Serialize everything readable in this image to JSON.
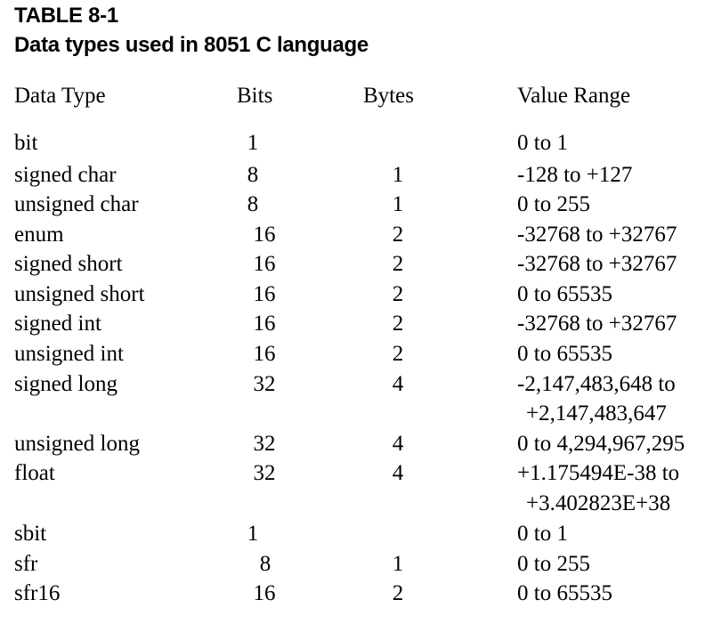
{
  "caption": {
    "number": "TABLE 8-1",
    "title": "Data types used in 8051 C language"
  },
  "table": {
    "headers": {
      "data_type": "Data Type",
      "bits": "Bits",
      "bytes": "Bytes",
      "value_range": "Value Range"
    },
    "rows": [
      {
        "type": "bit",
        "bits": "1",
        "bytes": "",
        "range": "0 to 1",
        "range_cont": ""
      },
      {
        "type": "signed char",
        "bits": "8",
        "bytes": "1",
        "range": "-128 to +127",
        "range_cont": ""
      },
      {
        "type": "unsigned char",
        "bits": "8",
        "bytes": "1",
        "range": "0 to 255",
        "range_cont": ""
      },
      {
        "type": "enum",
        "bits": "16",
        "bytes": "2",
        "range": "-32768 to +32767",
        "range_cont": ""
      },
      {
        "type": "signed short",
        "bits": "16",
        "bytes": "2",
        "range": "-32768 to +32767",
        "range_cont": ""
      },
      {
        "type": "unsigned short",
        "bits": "16",
        "bytes": "2",
        "range": "0 to 65535",
        "range_cont": ""
      },
      {
        "type": "signed int",
        "bits": "16",
        "bytes": "2",
        "range": "-32768 to +32767",
        "range_cont": ""
      },
      {
        "type": "unsigned int",
        "bits": "16",
        "bytes": "2",
        "range": "0 to 65535",
        "range_cont": ""
      },
      {
        "type": "signed long",
        "bits": "32",
        "bytes": "4",
        "range": "-2,147,483,648 to",
        "range_cont": "+2,147,483,647"
      },
      {
        "type": "unsigned long",
        "bits": "32",
        "bytes": "4",
        "range": "0 to 4,294,967,295",
        "range_cont": ""
      },
      {
        "type": "float",
        "bits": "32",
        "bytes": "4",
        "range": "+1.175494E-38 to",
        "range_cont": "+3.402823E+38"
      },
      {
        "type": "sbit",
        "bits": "1",
        "bytes": "",
        "range": "0 to 1",
        "range_cont": ""
      },
      {
        "type": "sfr",
        "bits": "8",
        "bytes": "1",
        "range": "0 to 255",
        "range_cont": ""
      },
      {
        "type": "sfr16",
        "bits": "16",
        "bytes": "2",
        "range": "0 to 65535",
        "range_cont": ""
      }
    ]
  }
}
